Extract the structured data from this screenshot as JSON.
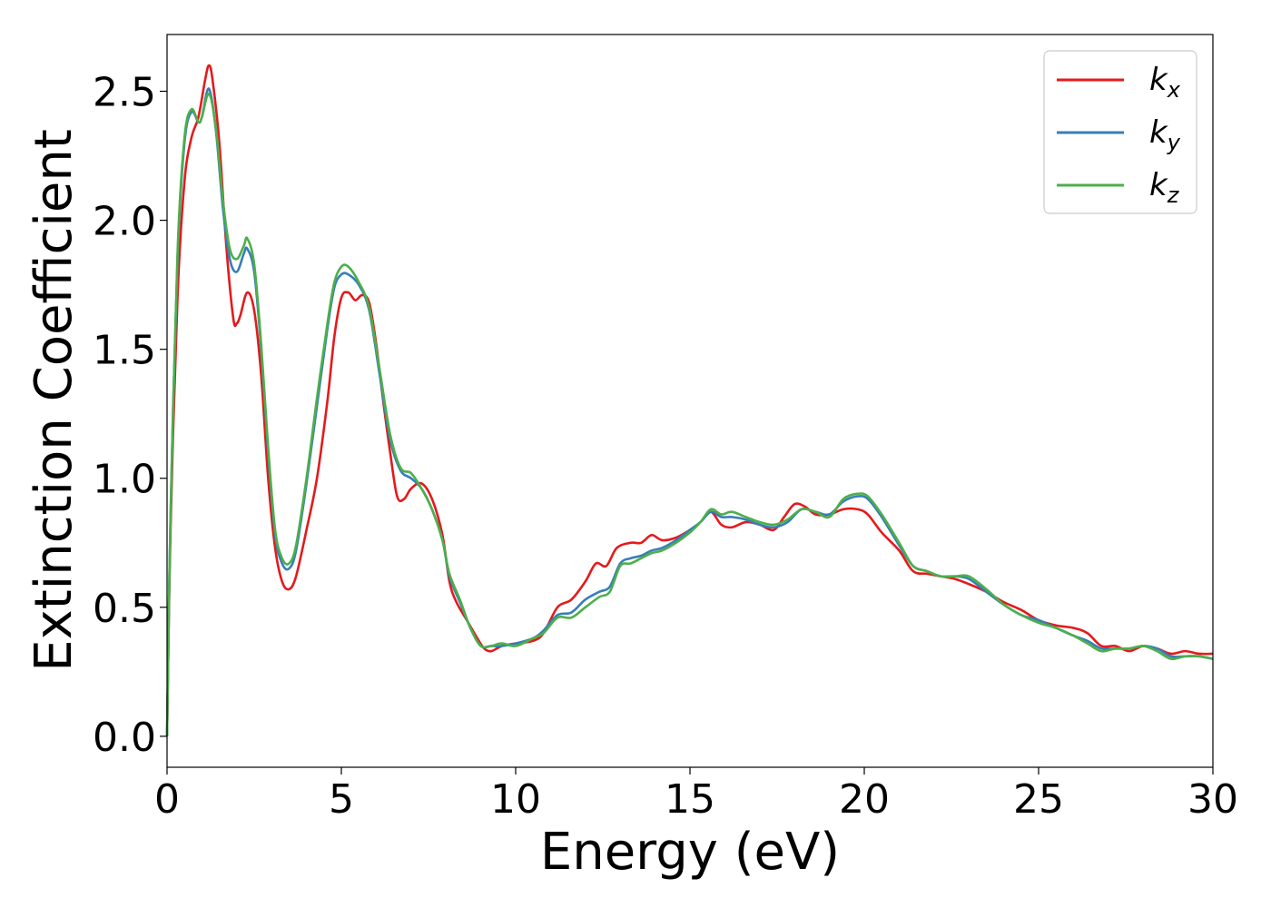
{
  "chart_data": {
    "type": "line",
    "xlabel": "Energy (eV)",
    "ylabel": "Extinction Coefficient",
    "xlim": [
      0,
      30
    ],
    "ylim": [
      -0.12,
      2.72
    ],
    "xticks": [
      0,
      5,
      10,
      15,
      20,
      25,
      30
    ],
    "xtick_labels": [
      "0",
      "5",
      "10",
      "15",
      "20",
      "25",
      "30"
    ],
    "yticks": [
      0.0,
      0.5,
      1.0,
      1.5,
      2.0,
      2.5
    ],
    "ytick_labels": [
      "0.0",
      "0.5",
      "1.0",
      "1.5",
      "2.0",
      "2.5"
    ],
    "grid": false,
    "legend_position": "top-right",
    "series": [
      {
        "name": "k",
        "subscript": "x",
        "color": "#e41a1c",
        "points": [
          [
            0,
            0.0
          ],
          [
            0.1,
            0.8
          ],
          [
            0.3,
            1.7
          ],
          [
            0.5,
            2.15
          ],
          [
            0.7,
            2.32
          ],
          [
            0.9,
            2.4
          ],
          [
            1.1,
            2.55
          ],
          [
            1.2,
            2.6
          ],
          [
            1.3,
            2.55
          ],
          [
            1.5,
            2.3
          ],
          [
            1.7,
            1.9
          ],
          [
            1.9,
            1.62
          ],
          [
            2.0,
            1.6
          ],
          [
            2.1,
            1.63
          ],
          [
            2.3,
            1.72
          ],
          [
            2.5,
            1.65
          ],
          [
            2.7,
            1.4
          ],
          [
            2.9,
            1.0
          ],
          [
            3.1,
            0.73
          ],
          [
            3.3,
            0.6
          ],
          [
            3.5,
            0.57
          ],
          [
            3.7,
            0.62
          ],
          [
            4.0,
            0.8
          ],
          [
            4.3,
            1.0
          ],
          [
            4.6,
            1.3
          ],
          [
            4.8,
            1.55
          ],
          [
            5.0,
            1.7
          ],
          [
            5.2,
            1.72
          ],
          [
            5.4,
            1.69
          ],
          [
            5.6,
            1.71
          ],
          [
            5.8,
            1.68
          ],
          [
            6.0,
            1.52
          ],
          [
            6.2,
            1.3
          ],
          [
            6.4,
            1.1
          ],
          [
            6.6,
            0.93
          ],
          [
            6.8,
            0.92
          ],
          [
            7.0,
            0.96
          ],
          [
            7.3,
            0.98
          ],
          [
            7.6,
            0.92
          ],
          [
            7.9,
            0.78
          ],
          [
            8.1,
            0.6
          ],
          [
            8.3,
            0.52
          ],
          [
            8.6,
            0.45
          ],
          [
            8.9,
            0.38
          ],
          [
            9.1,
            0.34
          ],
          [
            9.3,
            0.33
          ],
          [
            9.6,
            0.35
          ],
          [
            10.0,
            0.36
          ],
          [
            10.5,
            0.37
          ],
          [
            10.8,
            0.4
          ],
          [
            11.2,
            0.5
          ],
          [
            11.6,
            0.53
          ],
          [
            12.0,
            0.6
          ],
          [
            12.3,
            0.67
          ],
          [
            12.6,
            0.66
          ],
          [
            12.9,
            0.73
          ],
          [
            13.3,
            0.75
          ],
          [
            13.6,
            0.75
          ],
          [
            13.9,
            0.78
          ],
          [
            14.2,
            0.76
          ],
          [
            14.6,
            0.77
          ],
          [
            15.0,
            0.8
          ],
          [
            15.3,
            0.83
          ],
          [
            15.6,
            0.87
          ],
          [
            15.9,
            0.82
          ],
          [
            16.2,
            0.81
          ],
          [
            16.6,
            0.83
          ],
          [
            17.0,
            0.82
          ],
          [
            17.4,
            0.8
          ],
          [
            17.7,
            0.85
          ],
          [
            18.0,
            0.9
          ],
          [
            18.3,
            0.89
          ],
          [
            18.6,
            0.86
          ],
          [
            19.0,
            0.86
          ],
          [
            19.4,
            0.88
          ],
          [
            19.8,
            0.88
          ],
          [
            20.1,
            0.86
          ],
          [
            20.5,
            0.79
          ],
          [
            21.0,
            0.72
          ],
          [
            21.4,
            0.64
          ],
          [
            21.8,
            0.63
          ],
          [
            22.2,
            0.62
          ],
          [
            22.6,
            0.61
          ],
          [
            23.0,
            0.59
          ],
          [
            23.5,
            0.56
          ],
          [
            24.0,
            0.52
          ],
          [
            24.5,
            0.49
          ],
          [
            25.0,
            0.45
          ],
          [
            25.5,
            0.43
          ],
          [
            26.0,
            0.42
          ],
          [
            26.4,
            0.4
          ],
          [
            26.8,
            0.35
          ],
          [
            27.2,
            0.35
          ],
          [
            27.6,
            0.33
          ],
          [
            28.0,
            0.35
          ],
          [
            28.4,
            0.34
          ],
          [
            28.8,
            0.32
          ],
          [
            29.2,
            0.33
          ],
          [
            29.6,
            0.32
          ],
          [
            30.0,
            0.32
          ]
        ]
      },
      {
        "name": "k",
        "subscript": "y",
        "color": "#377eb8",
        "points": [
          [
            0,
            0.0
          ],
          [
            0.1,
            0.85
          ],
          [
            0.3,
            1.85
          ],
          [
            0.5,
            2.3
          ],
          [
            0.7,
            2.42
          ],
          [
            0.9,
            2.38
          ],
          [
            1.0,
            2.4
          ],
          [
            1.2,
            2.51
          ],
          [
            1.4,
            2.35
          ],
          [
            1.6,
            2.05
          ],
          [
            1.8,
            1.85
          ],
          [
            2.0,
            1.8
          ],
          [
            2.2,
            1.87
          ],
          [
            2.3,
            1.89
          ],
          [
            2.5,
            1.8
          ],
          [
            2.7,
            1.5
          ],
          [
            2.9,
            1.1
          ],
          [
            3.1,
            0.78
          ],
          [
            3.3,
            0.67
          ],
          [
            3.5,
            0.65
          ],
          [
            3.7,
            0.72
          ],
          [
            4.0,
            0.98
          ],
          [
            4.3,
            1.28
          ],
          [
            4.6,
            1.58
          ],
          [
            4.8,
            1.74
          ],
          [
            5.0,
            1.79
          ],
          [
            5.2,
            1.79
          ],
          [
            5.5,
            1.75
          ],
          [
            5.8,
            1.65
          ],
          [
            6.1,
            1.4
          ],
          [
            6.4,
            1.15
          ],
          [
            6.7,
            1.03
          ],
          [
            7.0,
            1.0
          ],
          [
            7.3,
            0.96
          ],
          [
            7.6,
            0.88
          ],
          [
            7.9,
            0.76
          ],
          [
            8.1,
            0.62
          ],
          [
            8.4,
            0.52
          ],
          [
            8.7,
            0.42
          ],
          [
            9.0,
            0.35
          ],
          [
            9.3,
            0.35
          ],
          [
            9.6,
            0.35
          ],
          [
            10.0,
            0.36
          ],
          [
            10.5,
            0.38
          ],
          [
            10.8,
            0.41
          ],
          [
            11.2,
            0.47
          ],
          [
            11.6,
            0.48
          ],
          [
            12.0,
            0.53
          ],
          [
            12.4,
            0.56
          ],
          [
            12.7,
            0.58
          ],
          [
            13.0,
            0.67
          ],
          [
            13.3,
            0.69
          ],
          [
            13.6,
            0.7
          ],
          [
            13.9,
            0.72
          ],
          [
            14.2,
            0.73
          ],
          [
            14.6,
            0.76
          ],
          [
            15.0,
            0.8
          ],
          [
            15.3,
            0.83
          ],
          [
            15.6,
            0.87
          ],
          [
            15.9,
            0.85
          ],
          [
            16.2,
            0.85
          ],
          [
            16.6,
            0.84
          ],
          [
            17.0,
            0.82
          ],
          [
            17.4,
            0.81
          ],
          [
            17.8,
            0.83
          ],
          [
            18.2,
            0.88
          ],
          [
            18.6,
            0.87
          ],
          [
            19.0,
            0.86
          ],
          [
            19.4,
            0.91
          ],
          [
            19.8,
            0.93
          ],
          [
            20.1,
            0.92
          ],
          [
            20.5,
            0.85
          ],
          [
            21.0,
            0.74
          ],
          [
            21.4,
            0.66
          ],
          [
            21.8,
            0.64
          ],
          [
            22.2,
            0.62
          ],
          [
            22.6,
            0.62
          ],
          [
            23.0,
            0.61
          ],
          [
            23.5,
            0.56
          ],
          [
            24.0,
            0.51
          ],
          [
            24.5,
            0.47
          ],
          [
            25.0,
            0.45
          ],
          [
            25.5,
            0.42
          ],
          [
            26.0,
            0.39
          ],
          [
            26.4,
            0.37
          ],
          [
            26.8,
            0.34
          ],
          [
            27.2,
            0.34
          ],
          [
            27.6,
            0.34
          ],
          [
            28.0,
            0.35
          ],
          [
            28.4,
            0.34
          ],
          [
            28.8,
            0.31
          ],
          [
            29.2,
            0.31
          ],
          [
            29.6,
            0.31
          ],
          [
            30.0,
            0.3
          ]
        ]
      },
      {
        "name": "k",
        "subscript": "z",
        "color": "#4daf4a",
        "points": [
          [
            0,
            0.0
          ],
          [
            0.1,
            0.85
          ],
          [
            0.3,
            1.87
          ],
          [
            0.5,
            2.32
          ],
          [
            0.7,
            2.43
          ],
          [
            0.9,
            2.38
          ],
          [
            1.0,
            2.4
          ],
          [
            1.2,
            2.49
          ],
          [
            1.4,
            2.36
          ],
          [
            1.6,
            2.08
          ],
          [
            1.8,
            1.89
          ],
          [
            2.0,
            1.85
          ],
          [
            2.2,
            1.9
          ],
          [
            2.3,
            1.93
          ],
          [
            2.5,
            1.83
          ],
          [
            2.7,
            1.52
          ],
          [
            2.9,
            1.12
          ],
          [
            3.1,
            0.8
          ],
          [
            3.3,
            0.69
          ],
          [
            3.5,
            0.67
          ],
          [
            3.7,
            0.74
          ],
          [
            4.0,
            1.0
          ],
          [
            4.3,
            1.31
          ],
          [
            4.6,
            1.6
          ],
          [
            4.8,
            1.76
          ],
          [
            5.0,
            1.82
          ],
          [
            5.2,
            1.82
          ],
          [
            5.5,
            1.76
          ],
          [
            5.8,
            1.66
          ],
          [
            6.1,
            1.42
          ],
          [
            6.4,
            1.17
          ],
          [
            6.7,
            1.04
          ],
          [
            7.0,
            1.02
          ],
          [
            7.3,
            0.96
          ],
          [
            7.6,
            0.88
          ],
          [
            7.9,
            0.76
          ],
          [
            8.1,
            0.63
          ],
          [
            8.4,
            0.53
          ],
          [
            8.7,
            0.42
          ],
          [
            9.0,
            0.35
          ],
          [
            9.3,
            0.35
          ],
          [
            9.6,
            0.36
          ],
          [
            10.0,
            0.35
          ],
          [
            10.5,
            0.38
          ],
          [
            10.8,
            0.4
          ],
          [
            11.2,
            0.46
          ],
          [
            11.6,
            0.46
          ],
          [
            12.0,
            0.5
          ],
          [
            12.4,
            0.54
          ],
          [
            12.7,
            0.56
          ],
          [
            13.0,
            0.66
          ],
          [
            13.3,
            0.67
          ],
          [
            13.6,
            0.69
          ],
          [
            13.9,
            0.71
          ],
          [
            14.2,
            0.72
          ],
          [
            14.6,
            0.75
          ],
          [
            15.0,
            0.79
          ],
          [
            15.3,
            0.83
          ],
          [
            15.6,
            0.88
          ],
          [
            15.9,
            0.86
          ],
          [
            16.2,
            0.87
          ],
          [
            16.6,
            0.85
          ],
          [
            17.0,
            0.83
          ],
          [
            17.4,
            0.82
          ],
          [
            17.8,
            0.84
          ],
          [
            18.2,
            0.88
          ],
          [
            18.6,
            0.87
          ],
          [
            19.0,
            0.85
          ],
          [
            19.4,
            0.92
          ],
          [
            19.8,
            0.94
          ],
          [
            20.1,
            0.93
          ],
          [
            20.5,
            0.86
          ],
          [
            21.0,
            0.75
          ],
          [
            21.4,
            0.66
          ],
          [
            21.8,
            0.64
          ],
          [
            22.2,
            0.62
          ],
          [
            22.6,
            0.62
          ],
          [
            23.0,
            0.62
          ],
          [
            23.5,
            0.57
          ],
          [
            24.0,
            0.51
          ],
          [
            24.5,
            0.47
          ],
          [
            25.0,
            0.44
          ],
          [
            25.5,
            0.42
          ],
          [
            26.0,
            0.39
          ],
          [
            26.4,
            0.36
          ],
          [
            26.8,
            0.33
          ],
          [
            27.2,
            0.34
          ],
          [
            27.6,
            0.34
          ],
          [
            28.0,
            0.35
          ],
          [
            28.4,
            0.33
          ],
          [
            28.8,
            0.3
          ],
          [
            29.2,
            0.31
          ],
          [
            29.6,
            0.31
          ],
          [
            30.0,
            0.3
          ]
        ]
      }
    ]
  }
}
